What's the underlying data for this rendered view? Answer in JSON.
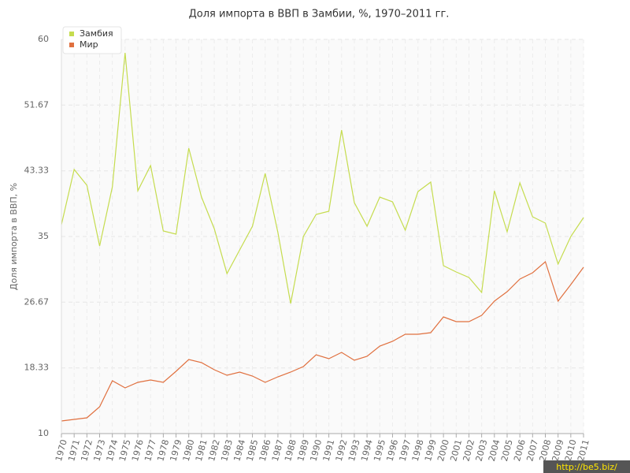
{
  "chart_data": {
    "type": "line",
    "title": "Доля импорта в ВВП в Замбии, %, 1970–2011 гг.",
    "y_label": "Доля импорта в ВВП, %",
    "watermark": "http://be5.biz/",
    "categories": [
      "1970",
      "1971",
      "1972",
      "1973",
      "1974",
      "1975",
      "1976",
      "1977",
      "1978",
      "1979",
      "1980",
      "1981",
      "1982",
      "1983",
      "1984",
      "1985",
      "1986",
      "1987",
      "1988",
      "1989",
      "1990",
      "1991",
      "1992",
      "1993",
      "1994",
      "1995",
      "1996",
      "1997",
      "1998",
      "1999",
      "2000",
      "2001",
      "2002",
      "2003",
      "2004",
      "2005",
      "2006",
      "2007",
      "2008",
      "2009",
      "2010",
      "2011"
    ],
    "series": [
      {
        "name": "Замбия",
        "color": "#c5dc4e",
        "values": [
          36.5,
          43.5,
          41.5,
          33.8,
          41.3,
          58.3,
          40.8,
          44,
          35.7,
          35.3,
          46.2,
          40,
          36,
          30.3,
          33.3,
          36.3,
          43,
          35.5,
          26.5,
          35,
          37.8,
          38.2,
          48.5,
          39.3,
          36.3,
          40,
          39.4,
          35.8,
          40.7,
          41.9,
          31.3,
          30.5,
          29.8,
          27.9,
          40.8,
          35.6,
          41.8,
          37.5,
          36.7,
          31.5,
          35,
          37.4
        ]
      },
      {
        "name": "Мир",
        "color": "#e0703f",
        "values": [
          11.6,
          11.8,
          12,
          13.4,
          16.7,
          15.8,
          16.5,
          16.8,
          16.5,
          17.9,
          19.4,
          19,
          18.1,
          17.4,
          17.8,
          17.3,
          16.5,
          17.2,
          17.8,
          18.5,
          20,
          19.5,
          20.3,
          19.3,
          19.8,
          21.1,
          21.7,
          22.6,
          22.6,
          22.8,
          24.8,
          24.2,
          24.2,
          25,
          26.8,
          28,
          29.6,
          30.4,
          31.8,
          26.8,
          28.9,
          31.1
        ]
      }
    ],
    "ylim": [
      10,
      60
    ],
    "yticks": [
      10,
      18.33,
      26.67,
      35,
      43.33,
      51.67,
      60
    ],
    "grid": true,
    "legend": "top-left"
  }
}
